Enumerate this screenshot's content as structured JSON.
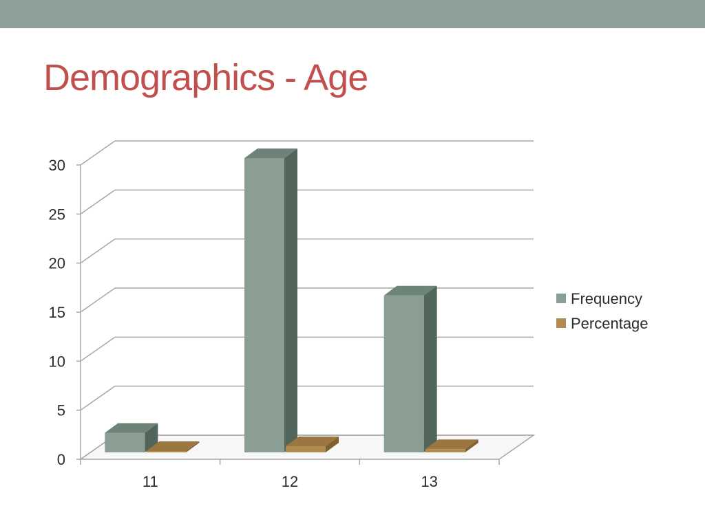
{
  "slide": {
    "title": "Demographics - Age"
  },
  "colors": {
    "top_bar": "#8e9f97",
    "title": "#c0504d",
    "frequency": "#8a9e94",
    "percentage": "#b08a4e"
  },
  "chart_data": {
    "type": "bar",
    "title": "",
    "xlabel": "",
    "ylabel": "",
    "categories": [
      "11",
      "12",
      "13"
    ],
    "series": [
      {
        "name": "Frequency",
        "values": [
          2,
          30,
          16
        ]
      },
      {
        "name": "Percentage",
        "values": [
          0.04,
          0.63,
          0.33
        ]
      }
    ],
    "ylim": [
      0,
      30
    ],
    "yticks": [
      "0",
      "5",
      "10",
      "15",
      "20",
      "25",
      "30"
    ],
    "grid": true,
    "legend_position": "right",
    "style": "3d-column"
  }
}
